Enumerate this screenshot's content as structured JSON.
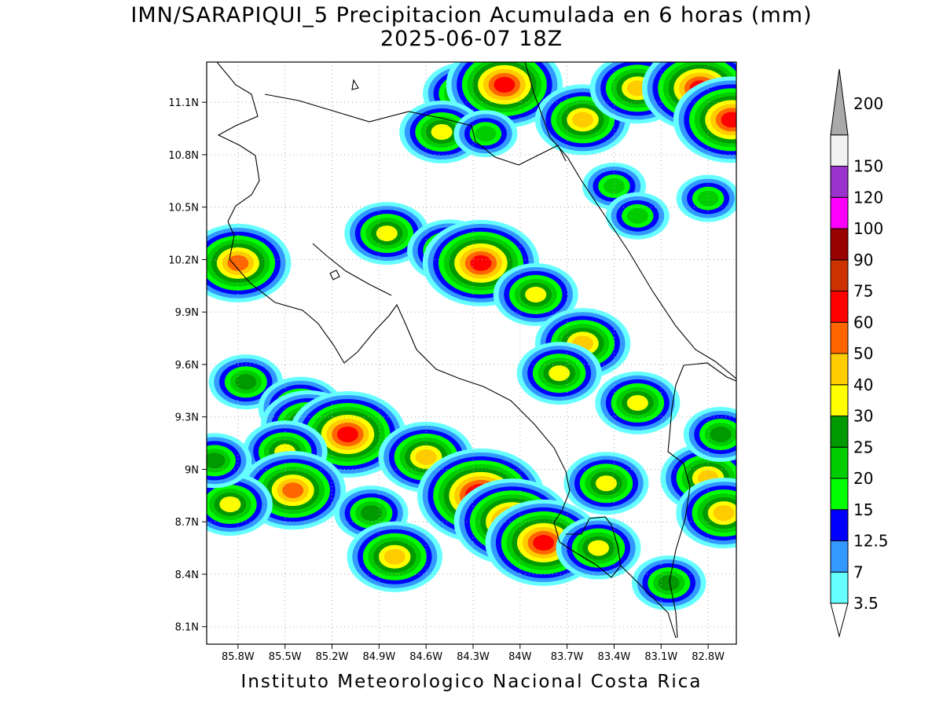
{
  "title": {
    "line1": "IMN/SARAPIQUI_5 Precipitacion Acumulada en 6 horas (mm)",
    "line2": "2025-06-07 18Z"
  },
  "footer": "Instituto Meteorologico Nacional Costa Rica",
  "map": {
    "lat_range": [
      8.0,
      11.33
    ],
    "lon_range": [
      -86.0,
      -82.62
    ],
    "lat_ticks": [
      {
        "value": 11.1,
        "label": "11.1N"
      },
      {
        "value": 10.8,
        "label": "10.8N"
      },
      {
        "value": 10.5,
        "label": "10.5N"
      },
      {
        "value": 10.2,
        "label": "10.2N"
      },
      {
        "value": 9.9,
        "label": "9.9N"
      },
      {
        "value": 9.6,
        "label": "9.6N"
      },
      {
        "value": 9.3,
        "label": "9.3N"
      },
      {
        "value": 9.0,
        "label": "9N"
      },
      {
        "value": 8.7,
        "label": "8.7N"
      },
      {
        "value": 8.4,
        "label": "8.4N"
      },
      {
        "value": 8.1,
        "label": "8.1N"
      }
    ],
    "lon_ticks": [
      {
        "value": -85.8,
        "label": "85.8W"
      },
      {
        "value": -85.5,
        "label": "85.5W"
      },
      {
        "value": -85.2,
        "label": "85.2W"
      },
      {
        "value": -84.9,
        "label": "84.9W"
      },
      {
        "value": -84.6,
        "label": "84.6W"
      },
      {
        "value": -84.3,
        "label": "84.3W"
      },
      {
        "value": -84.0,
        "label": "84W"
      },
      {
        "value": -83.7,
        "label": "83.7W"
      },
      {
        "value": -83.4,
        "label": "83.4W"
      },
      {
        "value": -83.1,
        "label": "83.1W"
      },
      {
        "value": -82.8,
        "label": "82.8W"
      }
    ],
    "grid": true
  },
  "colorbar": {
    "labels": [
      "3.5",
      "7",
      "12.5",
      "15",
      "20",
      "25",
      "30",
      "40",
      "50",
      "60",
      "75",
      "90",
      "100",
      "120",
      "150",
      "200"
    ],
    "colors": [
      "#66ffff",
      "#3399ff",
      "#0000ff",
      "#00ff00",
      "#00cc00",
      "#009900",
      "#ffff00",
      "#ffcc00",
      "#ff6600",
      "#ff0000",
      "#cc3300",
      "#990000",
      "#ff00ff",
      "#9933cc",
      "#f2f2f2",
      "#aaaaaa"
    ]
  },
  "precip_cells": [
    {
      "lat": 11.15,
      "lon": -84.35,
      "level": 30
    },
    {
      "lat": 11.2,
      "lon": -84.1,
      "level": 60
    },
    {
      "lat": 11.0,
      "lon": -83.6,
      "level": 40
    },
    {
      "lat": 11.18,
      "lon": -83.25,
      "level": 40
    },
    {
      "lat": 11.18,
      "lon": -82.85,
      "level": 60
    },
    {
      "lat": 11.0,
      "lon": -82.65,
      "level": 60
    },
    {
      "lat": 10.93,
      "lon": -84.5,
      "level": 30
    },
    {
      "lat": 10.92,
      "lon": -84.22,
      "level": 20
    },
    {
      "lat": 10.62,
      "lon": -83.4,
      "level": 20
    },
    {
      "lat": 10.45,
      "lon": -83.25,
      "level": 20
    },
    {
      "lat": 10.55,
      "lon": -82.8,
      "level": 20
    },
    {
      "lat": 10.35,
      "lon": -84.85,
      "level": 30
    },
    {
      "lat": 10.25,
      "lon": -84.45,
      "level": 30
    },
    {
      "lat": 10.18,
      "lon": -84.25,
      "level": 60
    },
    {
      "lat": 10.18,
      "lon": -85.8,
      "level": 50
    },
    {
      "lat": 10.0,
      "lon": -83.9,
      "level": 30
    },
    {
      "lat": 9.72,
      "lon": -83.6,
      "level": 40
    },
    {
      "lat": 9.55,
      "lon": -83.75,
      "level": 30
    },
    {
      "lat": 9.5,
      "lon": -85.75,
      "level": 25
    },
    {
      "lat": 9.35,
      "lon": -85.4,
      "level": 30
    },
    {
      "lat": 9.25,
      "lon": -85.35,
      "level": 40
    },
    {
      "lat": 9.2,
      "lon": -85.1,
      "level": 60
    },
    {
      "lat": 9.1,
      "lon": -85.5,
      "level": 30
    },
    {
      "lat": 9.07,
      "lon": -84.6,
      "level": 40
    },
    {
      "lat": 8.88,
      "lon": -85.45,
      "level": 50
    },
    {
      "lat": 8.85,
      "lon": -84.25,
      "level": 75
    },
    {
      "lat": 8.7,
      "lon": -84.05,
      "level": 60
    },
    {
      "lat": 8.58,
      "lon": -83.85,
      "level": 60
    },
    {
      "lat": 8.75,
      "lon": -84.95,
      "level": 25
    },
    {
      "lat": 8.5,
      "lon": -84.8,
      "level": 40
    },
    {
      "lat": 8.92,
      "lon": -83.45,
      "level": 30
    },
    {
      "lat": 8.95,
      "lon": -82.8,
      "level": 40
    },
    {
      "lat": 8.75,
      "lon": -82.7,
      "level": 40
    },
    {
      "lat": 9.2,
      "lon": -82.72,
      "level": 25
    },
    {
      "lat": 9.38,
      "lon": -83.25,
      "level": 30
    },
    {
      "lat": 8.55,
      "lon": -83.5,
      "level": 30
    },
    {
      "lat": 8.35,
      "lon": -83.05,
      "level": 25
    },
    {
      "lat": 8.8,
      "lon": -85.85,
      "level": 30
    },
    {
      "lat": 9.05,
      "lon": -85.95,
      "level": 25
    }
  ]
}
